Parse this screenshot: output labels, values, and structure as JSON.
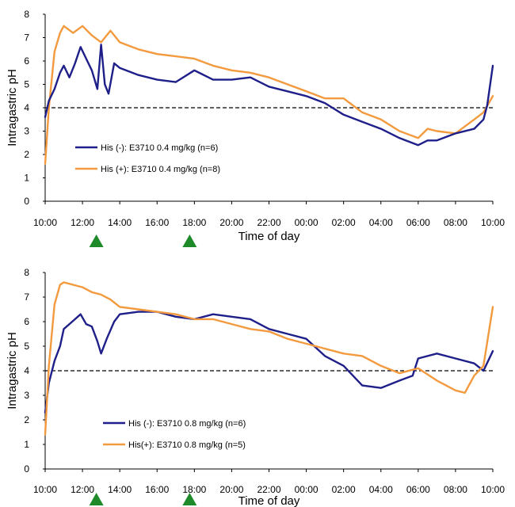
{
  "chart_data": [
    {
      "type": "line",
      "title": "",
      "xlabel": "Time of day",
      "ylabel": "Intragastric pH",
      "x_ticks": [
        "10:00",
        "12:00",
        "14:00",
        "16:00",
        "18:00",
        "20:00",
        "22:00",
        "00:00",
        "02:00",
        "04:00",
        "06:00",
        "08:00",
        "10:00"
      ],
      "x_hours": [
        0,
        2,
        4,
        6,
        8,
        10,
        12,
        14,
        16,
        18,
        20,
        22,
        24
      ],
      "y_ticks": [
        "0",
        "1",
        "2",
        "3",
        "4",
        "5",
        "6",
        "7",
        "8"
      ],
      "ylim": [
        0,
        8
      ],
      "xlim": [
        0,
        24
      ],
      "threshold": 4,
      "dose_markers_hours": [
        3,
        8
      ],
      "legend_position": "left-middle",
      "grid": false,
      "series": [
        {
          "name": "His (-): E3710 0.4 mg/kg (n=6)",
          "color": "#1f1f8a",
          "points": [
            [
              0,
              3.6
            ],
            [
              0.2,
              4.3
            ],
            [
              0.5,
              4.8
            ],
            [
              0.8,
              5.5
            ],
            [
              1,
              5.8
            ],
            [
              1.3,
              5.3
            ],
            [
              1.6,
              5.9
            ],
            [
              1.9,
              6.6
            ],
            [
              2.2,
              6.1
            ],
            [
              2.5,
              5.6
            ],
            [
              2.8,
              4.8
            ],
            [
              3.0,
              6.7
            ],
            [
              3.2,
              5.0
            ],
            [
              3.4,
              4.6
            ],
            [
              3.7,
              5.9
            ],
            [
              4,
              5.7
            ],
            [
              5,
              5.4
            ],
            [
              6,
              5.2
            ],
            [
              7,
              5.1
            ],
            [
              8,
              5.6
            ],
            [
              9,
              5.2
            ],
            [
              10,
              5.2
            ],
            [
              11,
              5.3
            ],
            [
              12,
              4.9
            ],
            [
              13,
              4.7
            ],
            [
              14,
              4.5
            ],
            [
              15,
              4.2
            ],
            [
              16,
              3.7
            ],
            [
              17,
              3.4
            ],
            [
              18,
              3.1
            ],
            [
              19,
              2.7
            ],
            [
              20,
              2.4
            ],
            [
              20.5,
              2.6
            ],
            [
              21,
              2.6
            ],
            [
              22,
              2.9
            ],
            [
              23,
              3.1
            ],
            [
              23.5,
              3.5
            ],
            [
              23.7,
              4.1
            ],
            [
              24,
              5.8
            ]
          ]
        },
        {
          "name": "His (+): E3710 0.4 mg/kg (n=8)",
          "color": "#f39a3e",
          "points": [
            [
              0,
              1.6
            ],
            [
              0.2,
              4.0
            ],
            [
              0.5,
              6.4
            ],
            [
              0.8,
              7.2
            ],
            [
              1,
              7.5
            ],
            [
              1.5,
              7.2
            ],
            [
              2,
              7.5
            ],
            [
              2.5,
              7.1
            ],
            [
              3,
              6.8
            ],
            [
              3.5,
              7.3
            ],
            [
              4,
              6.8
            ],
            [
              5,
              6.5
            ],
            [
              6,
              6.3
            ],
            [
              7,
              6.2
            ],
            [
              8,
              6.1
            ],
            [
              9,
              5.8
            ],
            [
              10,
              5.6
            ],
            [
              11,
              5.5
            ],
            [
              12,
              5.3
            ],
            [
              13,
              5.0
            ],
            [
              14,
              4.7
            ],
            [
              15,
              4.4
            ],
            [
              16,
              4.4
            ],
            [
              17,
              3.8
            ],
            [
              18,
              3.5
            ],
            [
              19,
              3.0
            ],
            [
              20,
              2.7
            ],
            [
              20.5,
              3.1
            ],
            [
              21,
              3.0
            ],
            [
              22,
              2.9
            ],
            [
              23,
              3.5
            ],
            [
              23.5,
              3.8
            ],
            [
              24,
              4.5
            ]
          ]
        }
      ]
    },
    {
      "type": "line",
      "title": "",
      "xlabel": "Time of day",
      "ylabel": "Intragastric pH",
      "x_ticks": [
        "10:00",
        "12:00",
        "14:00",
        "16:00",
        "18:00",
        "20:00",
        "22:00",
        "00:00",
        "02:00",
        "04:00",
        "06:00",
        "08:00",
        "10:00"
      ],
      "x_hours": [
        0,
        2,
        4,
        6,
        8,
        10,
        12,
        14,
        16,
        18,
        20,
        22,
        24
      ],
      "y_ticks": [
        "0",
        "1",
        "2",
        "3",
        "4",
        "5",
        "6",
        "7",
        "8"
      ],
      "ylim": [
        0,
        8
      ],
      "xlim": [
        0,
        24
      ],
      "threshold": 4,
      "dose_markers_hours": [
        3,
        8
      ],
      "legend_position": "bottom-left",
      "grid": false,
      "series": [
        {
          "name": "His (-): E3710 0.8 mg/kg (n=6)",
          "color": "#1f1f8a",
          "points": [
            [
              0,
              2.3
            ],
            [
              0.2,
              3.5
            ],
            [
              0.5,
              4.4
            ],
            [
              0.8,
              5.0
            ],
            [
              1,
              5.7
            ],
            [
              1.3,
              5.9
            ],
            [
              1.6,
              6.1
            ],
            [
              1.9,
              6.3
            ],
            [
              2.2,
              5.9
            ],
            [
              2.5,
              5.8
            ],
            [
              2.8,
              5.2
            ],
            [
              3.0,
              4.7
            ],
            [
              3.3,
              5.3
            ],
            [
              3.7,
              6.0
            ],
            [
              4,
              6.3
            ],
            [
              5,
              6.4
            ],
            [
              6,
              6.4
            ],
            [
              7,
              6.2
            ],
            [
              8,
              6.1
            ],
            [
              9,
              6.3
            ],
            [
              10,
              6.2
            ],
            [
              11,
              6.1
            ],
            [
              12,
              5.7
            ],
            [
              13,
              5.5
            ],
            [
              14,
              5.3
            ],
            [
              15,
              4.6
            ],
            [
              16,
              4.2
            ],
            [
              17,
              3.4
            ],
            [
              18,
              3.3
            ],
            [
              19,
              3.6
            ],
            [
              19.7,
              3.8
            ],
            [
              20,
              4.5
            ],
            [
              21,
              4.7
            ],
            [
              22,
              4.5
            ],
            [
              23,
              4.3
            ],
            [
              23.5,
              4.0
            ],
            [
              24,
              4.8
            ]
          ]
        },
        {
          "name": "His(+): E3710 0.8 mg/kg (n=5)",
          "color": "#f39a3e",
          "points": [
            [
              0,
              1.4
            ],
            [
              0.2,
              4.2
            ],
            [
              0.5,
              6.7
            ],
            [
              0.8,
              7.5
            ],
            [
              1,
              7.6
            ],
            [
              1.5,
              7.5
            ],
            [
              2,
              7.4
            ],
            [
              2.5,
              7.2
            ],
            [
              3,
              7.1
            ],
            [
              3.5,
              6.9
            ],
            [
              4,
              6.6
            ],
            [
              5,
              6.5
            ],
            [
              6,
              6.4
            ],
            [
              7,
              6.3
            ],
            [
              8,
              6.1
            ],
            [
              9,
              6.1
            ],
            [
              10,
              5.9
            ],
            [
              11,
              5.7
            ],
            [
              12,
              5.6
            ],
            [
              13,
              5.3
            ],
            [
              14,
              5.1
            ],
            [
              15,
              4.9
            ],
            [
              16,
              4.7
            ],
            [
              17,
              4.6
            ],
            [
              18,
              4.2
            ],
            [
              19,
              3.9
            ],
            [
              20,
              4.1
            ],
            [
              21,
              3.6
            ],
            [
              21.5,
              3.4
            ],
            [
              22,
              3.2
            ],
            [
              22.5,
              3.1
            ],
            [
              23,
              3.8
            ],
            [
              23.5,
              4.2
            ],
            [
              24,
              6.6
            ]
          ]
        }
      ]
    }
  ]
}
